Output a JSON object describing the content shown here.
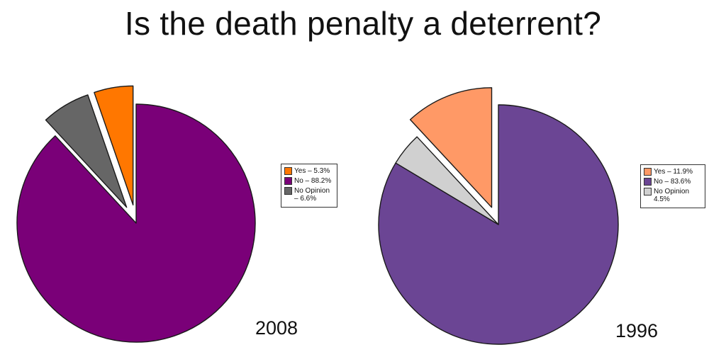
{
  "title": "Is the death penalty a deterrent?",
  "chart_data": [
    {
      "type": "pie",
      "label": "2008",
      "slices": [
        {
          "name": "Yes",
          "value": 5.3,
          "legend": "Yes – 5.3%",
          "color": "#ff7700",
          "exploded": true
        },
        {
          "name": "No",
          "value": 88.2,
          "legend": "No – 88.2%",
          "color": "#7a0078",
          "exploded": false
        },
        {
          "name": "No Opinion",
          "value": 6.6,
          "legend": "No Opinion – 6.6%",
          "color": "#666666",
          "exploded": true
        }
      ],
      "legend_position": "right"
    },
    {
      "type": "pie",
      "label": "1996",
      "slices": [
        {
          "name": "Yes",
          "value": 11.9,
          "legend": "Yes – 11.9%",
          "color": "#ff9966",
          "exploded": true
        },
        {
          "name": "No",
          "value": 83.6,
          "legend": "No – 83.6%",
          "color": "#6b4594",
          "exploded": false
        },
        {
          "name": "No Opinion",
          "value": 4.5,
          "legend": "No Opinion 4.5%",
          "color": "#d0d0d0",
          "exploded": false
        }
      ],
      "legend_position": "right"
    }
  ]
}
